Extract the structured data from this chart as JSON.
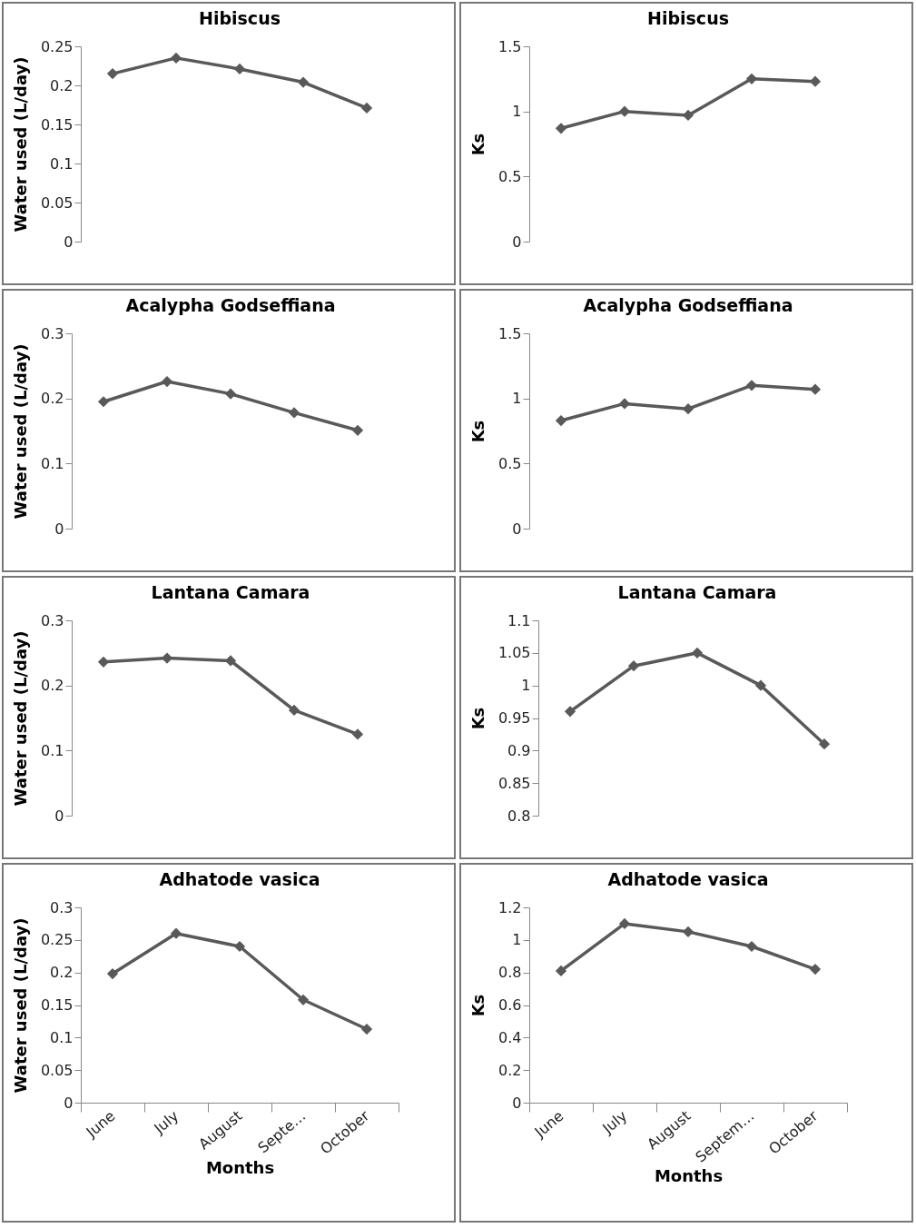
{
  "chart_data": [
    {
      "type": "line",
      "title": "Hibiscus",
      "ylabel": "Water used (L/day)",
      "categories": [
        null,
        null,
        null,
        null,
        null
      ],
      "series": [
        {
          "color": "#595959",
          "values": [
            0.215,
            0.235,
            0.221,
            0.204,
            0.171
          ]
        }
      ],
      "ylim": [
        0,
        0.25
      ],
      "yticks": [
        0,
        0.05,
        0.1,
        0.15,
        0.2,
        0.25
      ],
      "tick_labels": "y",
      "marker": "diamond"
    },
    {
      "type": "line",
      "title": "Hibiscus",
      "ylabel": "Ks",
      "categories": [
        null,
        null,
        null,
        null,
        null
      ],
      "series": [
        {
          "color": "#595959",
          "values": [
            0.87,
            1.0,
            0.97,
            1.25,
            1.23
          ]
        }
      ],
      "ylim": [
        0,
        1.5
      ],
      "yticks": [
        0,
        0.5,
        1,
        1.5
      ],
      "tick_labels": "y",
      "marker": "diamond"
    },
    {
      "type": "line",
      "title": "Acalypha Godseffiana",
      "ylabel": "Water used (L/day)",
      "categories": [
        null,
        null,
        null,
        null,
        null
      ],
      "series": [
        {
          "color": "#595959",
          "values": [
            0.195,
            0.226,
            0.207,
            0.178,
            0.151
          ]
        }
      ],
      "ylim": [
        0,
        0.3
      ],
      "yticks": [
        0,
        0.1,
        0.2,
        0.3
      ],
      "tick_labels": "y",
      "marker": "diamond"
    },
    {
      "type": "line",
      "title": "Acalypha Godseffiana",
      "ylabel": "Ks",
      "categories": [
        null,
        null,
        null,
        null,
        null
      ],
      "series": [
        {
          "color": "#595959",
          "values": [
            0.83,
            0.96,
            0.92,
            1.1,
            1.07
          ]
        }
      ],
      "ylim": [
        0,
        1.5
      ],
      "yticks": [
        0,
        0.5,
        1,
        1.5
      ],
      "tick_labels": "y",
      "marker": "diamond"
    },
    {
      "type": "line",
      "title": "Lantana Camara",
      "ylabel": "Water used (L/day)",
      "categories": [
        null,
        null,
        null,
        null,
        null
      ],
      "series": [
        {
          "color": "#595959",
          "values": [
            0.236,
            0.242,
            0.238,
            0.162,
            0.125
          ]
        }
      ],
      "ylim": [
        0,
        0.3
      ],
      "yticks": [
        0,
        0.1,
        0.2,
        0.3
      ],
      "tick_labels": "y",
      "marker": "diamond"
    },
    {
      "type": "line",
      "title": "Lantana Camara",
      "ylabel": "Ks",
      "categories": [
        null,
        null,
        null,
        null,
        null
      ],
      "series": [
        {
          "color": "#595959",
          "values": [
            0.96,
            1.03,
            1.05,
            1.0,
            0.91
          ]
        }
      ],
      "ylim": [
        0.8,
        1.1
      ],
      "yticks": [
        0.8,
        0.85,
        0.9,
        0.95,
        1,
        1.05,
        1.1
      ],
      "tick_labels": "y",
      "marker": "diamond"
    },
    {
      "type": "line",
      "title": "Adhatode vasica",
      "xlabel": "Months",
      "ylabel": "Water used (L/day)",
      "categories": [
        "June",
        "July",
        "August",
        "Septe…",
        "October"
      ],
      "series": [
        {
          "color": "#595959",
          "values": [
            0.198,
            0.26,
            0.24,
            0.158,
            0.113
          ]
        }
      ],
      "ylim": [
        0,
        0.3
      ],
      "yticks": [
        0,
        0.05,
        0.1,
        0.15,
        0.2,
        0.25,
        0.3
      ],
      "marker": "diamond"
    },
    {
      "type": "line",
      "title": "Adhatode vasica",
      "xlabel": "Months",
      "ylabel": "Ks",
      "categories": [
        "June",
        "July",
        "August",
        "Septem…",
        "October"
      ],
      "series": [
        {
          "color": "#595959",
          "values": [
            0.81,
            1.1,
            1.05,
            0.96,
            0.82
          ]
        }
      ],
      "ylim": [
        0,
        1.2
      ],
      "yticks": [
        0,
        0.2,
        0.4,
        0.6,
        0.8,
        1,
        1.2
      ],
      "marker": "diamond"
    }
  ]
}
